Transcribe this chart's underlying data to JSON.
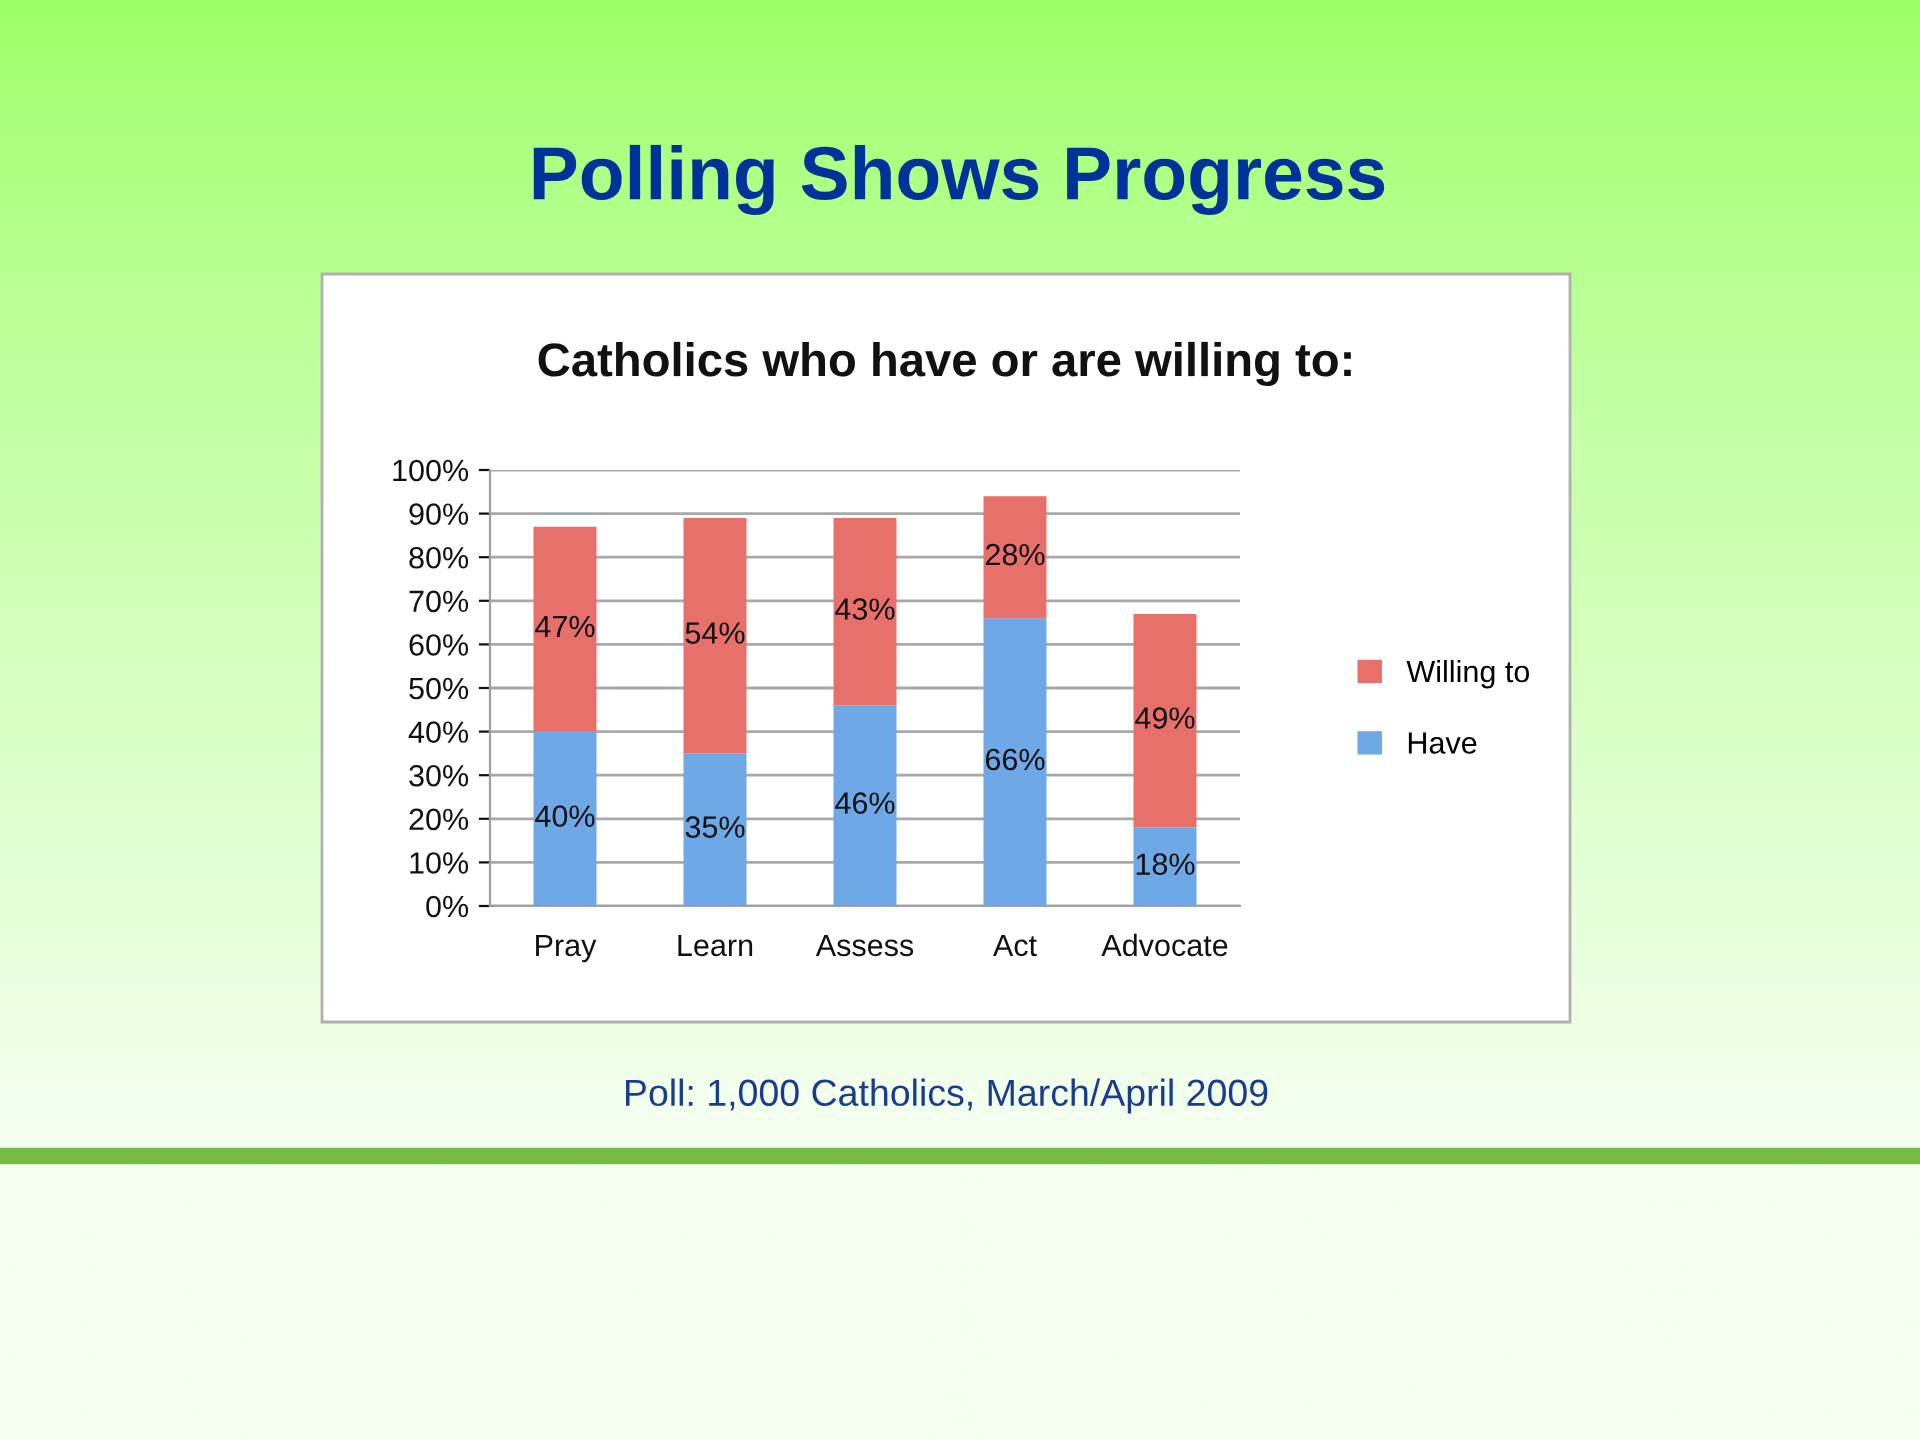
{
  "chart_data": {
    "type": "bar",
    "title": "Polling Shows Progress",
    "subtitle": "Catholics who have or are willing to:",
    "annotations": [
      "Poll: 1,000 Catholics, March/April 2009"
    ],
    "categories": [
      "Pray",
      "Learn",
      "Assess",
      "Act",
      "Advocate"
    ],
    "stacked": true,
    "series": [
      {
        "name": "Have",
        "color": "#6fa8e6",
        "values": [
          40,
          35,
          46,
          66,
          18
        ],
        "value_labels": [
          "40%",
          "35%",
          "46%",
          "66%",
          "18%"
        ]
      },
      {
        "name": "Willing to",
        "color": "#e8706a",
        "values": [
          47,
          54,
          43,
          28,
          49
        ],
        "value_labels": [
          "47%",
          "54%",
          "43%",
          "28%",
          "49%"
        ]
      }
    ],
    "ylim": [
      0,
      100
    ],
    "yticks": [
      {
        "value": 0,
        "label": "0%"
      },
      {
        "value": 10,
        "label": "10%"
      },
      {
        "value": 20,
        "label": "20%"
      },
      {
        "value": 30,
        "label": "30%"
      },
      {
        "value": 40,
        "label": "40%"
      },
      {
        "value": 50,
        "label": "50%"
      },
      {
        "value": 60,
        "label": "60%"
      },
      {
        "value": 70,
        "label": "70%"
      },
      {
        "value": 80,
        "label": "80%"
      },
      {
        "value": 90,
        "label": "90%"
      },
      {
        "value": 100,
        "label": "100%"
      }
    ],
    "grid": "y",
    "legend": "right"
  }
}
